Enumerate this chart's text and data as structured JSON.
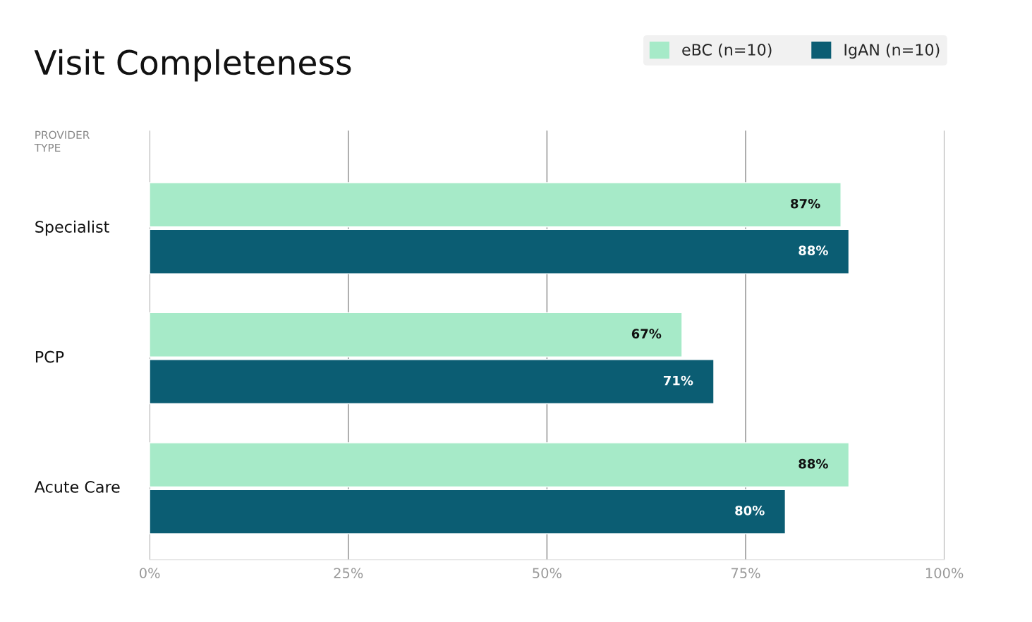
{
  "chart_data": {
    "type": "bar",
    "orientation": "horizontal",
    "title": "Visit Completeness",
    "ylabel": "PROVIDER TYPE",
    "categories": [
      "Specialist",
      "PCP",
      "Acute Care"
    ],
    "series": [
      {
        "name": "eBC (n=10)",
        "color": "#a6eac8",
        "values": [
          87,
          67,
          88
        ],
        "value_labels": [
          "87%",
          "67%",
          "88%"
        ]
      },
      {
        "name": "IgAN (n=10)",
        "color": "#0b5d73",
        "values": [
          88,
          71,
          80
        ],
        "value_labels": [
          "88%",
          "71%",
          "80%"
        ]
      }
    ],
    "xlim": [
      0,
      100
    ],
    "xticks": [
      {
        "value": 0,
        "label": "0%"
      },
      {
        "value": 25,
        "label": "25%"
      },
      {
        "value": 50,
        "label": "50%"
      },
      {
        "value": 75,
        "label": "75%"
      },
      {
        "value": 100,
        "label": "100%"
      }
    ],
    "grid": "x",
    "legend": "top right"
  }
}
